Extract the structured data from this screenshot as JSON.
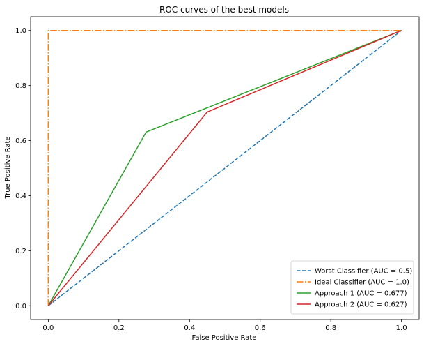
{
  "chart_data": {
    "type": "line",
    "title": "ROC curves of the best models",
    "xlabel": "False Positive Rate",
    "ylabel": "True Positive Rate",
    "xlim": [
      -0.05,
      1.05
    ],
    "ylim": [
      -0.05,
      1.05
    ],
    "xticks": [
      0.0,
      0.2,
      0.4,
      0.6,
      0.8,
      1.0
    ],
    "yticks": [
      0.0,
      0.2,
      0.4,
      0.6,
      0.8,
      1.0
    ],
    "xtick_labels": [
      "0.0",
      "0.2",
      "0.4",
      "0.6",
      "0.8",
      "1.0"
    ],
    "ytick_labels": [
      "0.0",
      "0.2",
      "0.4",
      "0.6",
      "0.8",
      "1.0"
    ],
    "grid": false,
    "legend_position": "lower-right",
    "series": [
      {
        "name": "Worst Classifier (AUC = 0.5)",
        "color": "#1f77b4",
        "linestyle": "dashed",
        "x": [
          0,
          1
        ],
        "y": [
          0,
          1
        ]
      },
      {
        "name": "Ideal Classifier (AUC = 1.0)",
        "color": "#ff7f0e",
        "linestyle": "dashdot",
        "x": [
          0,
          0,
          1
        ],
        "y": [
          0,
          1,
          1
        ]
      },
      {
        "name": "Approach 1 (AUC = 0.677)",
        "color": "#2ca02c",
        "linestyle": "solid",
        "x": [
          0,
          0.277,
          1
        ],
        "y": [
          0,
          0.631,
          1
        ]
      },
      {
        "name": "Approach 2 (AUC = 0.627)",
        "color": "#d62728",
        "linestyle": "solid",
        "x": [
          0,
          0.45,
          1
        ],
        "y": [
          0,
          0.704,
          1
        ]
      }
    ]
  }
}
